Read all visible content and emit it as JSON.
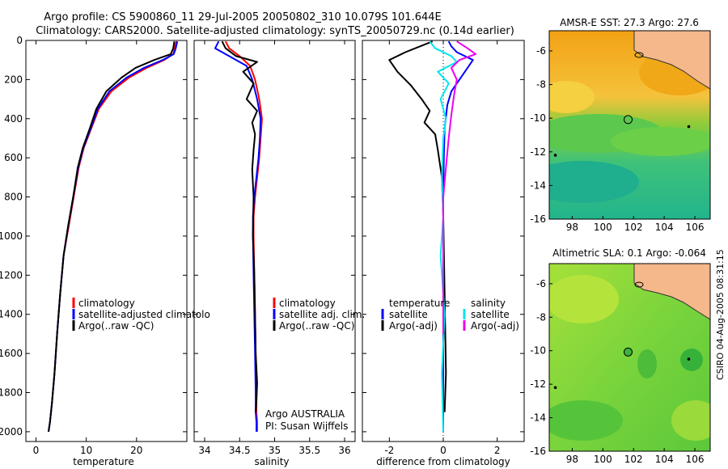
{
  "figure": {
    "title_line1": "Argo profile: CS 5900860_11 29-Jul-2005 20050802_310 10.079S 101.644E",
    "title_line2": "Climatology: CARS2000. Satellite-adjusted climatology: synTS_20050729.nc (0.14d earlier)",
    "credit": "CSIRO 04-Aug-2005 08:31:15"
  },
  "colors": {
    "climatology": "#ff0000",
    "satellite": "#0000ff",
    "argo": "#000000",
    "salinity_satellite": "#00e5ee",
    "salinity_argo": "#ee00ee",
    "land": "#f5b88a"
  },
  "chart_data": [
    {
      "type": "line",
      "id": "temperature",
      "xlabel": "temperature",
      "xlim": [
        -2,
        30
      ],
      "ylim": [
        2050,
        0
      ],
      "xticks": [
        0,
        10,
        20
      ],
      "xtick_labels": [
        "0",
        "10",
        "20"
      ],
      "yticks": [
        0,
        200,
        400,
        600,
        800,
        1000,
        1200,
        1400,
        1600,
        1800,
        2000
      ],
      "ytick_labels": [
        "0",
        "200",
        "400",
        "600",
        "800",
        "1000",
        "1200",
        "1400",
        "1600",
        "1800",
        "2000"
      ],
      "legend": [
        "climatology",
        "satellite-adjusted climatolo",
        "Argo(..raw -QC)"
      ],
      "legend_colors": [
        "#ff0000",
        "#0000ff",
        "#000000"
      ],
      "series": [
        {
          "name": "climatology",
          "color": "#ff0000",
          "x": [
            27.9,
            27.6,
            27.3,
            25.5,
            22.0,
            18.5,
            15.0,
            12.5,
            11.0,
            9.5,
            8.5,
            7.5,
            6.5,
            5.5,
            4.8,
            4.2,
            3.7,
            3.2,
            2.8,
            2.5
          ],
          "y": [
            5,
            40,
            70,
            100,
            140,
            190,
            260,
            350,
            450,
            550,
            650,
            800,
            950,
            1100,
            1300,
            1500,
            1700,
            1850,
            1950,
            2000
          ]
        },
        {
          "name": "satellite-adjusted climatology",
          "color": "#0000ff",
          "x": [
            28.1,
            27.8,
            27.4,
            25.2,
            21.5,
            18.0,
            14.6,
            12.3,
            10.9,
            9.4,
            8.4,
            7.4,
            6.4,
            5.5,
            4.8,
            4.2,
            3.7,
            3.2,
            2.8,
            2.5
          ],
          "y": [
            5,
            40,
            70,
            100,
            140,
            190,
            260,
            350,
            450,
            550,
            650,
            800,
            950,
            1100,
            1300,
            1500,
            1700,
            1850,
            1950,
            2000
          ]
        },
        {
          "name": "Argo(..raw -QC)",
          "color": "#000000",
          "x": [
            27.5,
            27.3,
            26.8,
            23.5,
            19.8,
            17.0,
            14.0,
            12.0,
            10.7,
            9.3,
            8.3,
            7.4,
            6.4,
            5.5,
            4.8,
            4.2,
            3.7,
            3.2,
            2.8,
            2.5
          ],
          "y": [
            5,
            40,
            70,
            100,
            140,
            190,
            260,
            350,
            450,
            550,
            650,
            800,
            950,
            1100,
            1300,
            1500,
            1700,
            1850,
            1950,
            2000
          ]
        }
      ]
    },
    {
      "type": "line",
      "id": "salinity",
      "xlabel": "salinity",
      "xlim": [
        33.85,
        36.15
      ],
      "ylim": [
        2050,
        0
      ],
      "xticks": [
        34,
        34.5,
        35,
        35.5,
        36
      ],
      "xtick_labels": [
        "34",
        "34.5",
        "35",
        "35.5",
        "36"
      ],
      "legend": [
        "climatology",
        "satellite adj. clim.",
        "Argo(..raw -QC)"
      ],
      "legend_colors": [
        "#ff0000",
        "#0000ff",
        "#000000"
      ],
      "annotation_line1": "Argo AUSTRALIA",
      "annotation_line2": "PI: Susan Wijffels",
      "series": [
        {
          "name": "climatology",
          "color": "#ff0000",
          "x": [
            34.3,
            34.35,
            34.5,
            34.65,
            34.72,
            34.78,
            34.82,
            34.8,
            34.78,
            34.75,
            34.72,
            34.7,
            34.7,
            34.71,
            34.72,
            34.73,
            34.74,
            34.74,
            34.75,
            34.75
          ],
          "y": [
            5,
            40,
            80,
            130,
            200,
            300,
            400,
            500,
            600,
            700,
            800,
            900,
            1000,
            1200,
            1400,
            1600,
            1800,
            1900,
            1950,
            2000
          ]
        },
        {
          "name": "satellite adj. clim.",
          "color": "#0000ff",
          "x": [
            34.2,
            34.15,
            34.35,
            34.6,
            34.68,
            34.75,
            34.8,
            34.79,
            34.77,
            34.74,
            34.71,
            34.69,
            34.69,
            34.7,
            34.71,
            34.72,
            34.73,
            34.73,
            34.74,
            34.74
          ],
          "y": [
            5,
            40,
            80,
            130,
            200,
            300,
            400,
            500,
            600,
            700,
            800,
            900,
            1000,
            1200,
            1400,
            1600,
            1800,
            1900,
            1950,
            2000
          ]
        },
        {
          "name": "Argo(..raw -QC)",
          "color": "#000000",
          "x": [
            34.25,
            34.3,
            34.45,
            34.75,
            34.55,
            34.7,
            34.6,
            34.75,
            34.68,
            34.72,
            34.7,
            34.68,
            34.7,
            34.69,
            34.71,
            34.72,
            34.73,
            34.75,
            34.74,
            34.73
          ],
          "y": [
            5,
            40,
            80,
            110,
            160,
            220,
            300,
            360,
            420,
            480,
            560,
            660,
            800,
            1000,
            1200,
            1400,
            1600,
            1750,
            1850,
            1900
          ]
        }
      ]
    },
    {
      "type": "line",
      "id": "difference",
      "xlabel": "difference from climatology",
      "xlim": [
        -3,
        3
      ],
      "ylim": [
        2050,
        0
      ],
      "xticks": [
        -2,
        0,
        2
      ],
      "xtick_labels": [
        "-2",
        "0",
        "2"
      ],
      "legend_temperature_title": "temperature",
      "legend_temperature": [
        "satellite",
        "Argo(-adj)"
      ],
      "legend_temperature_colors": [
        "#0000ff",
        "#000000"
      ],
      "legend_salinity_title": "salinity",
      "legend_salinity": [
        "satellite",
        "Argo(-adj)"
      ],
      "legend_salinity_colors": [
        "#00e5ee",
        "#ee00ee"
      ],
      "series": [
        {
          "name": "temperature satellite",
          "color": "#0000ff",
          "x": [
            0.2,
            0.3,
            0.5,
            0.8,
            1.1,
            0.9,
            0.6,
            0.3,
            0.15,
            0.05,
            0.02,
            0.0,
            0.0,
            0.0,
            0.0
          ],
          "y": [
            5,
            30,
            60,
            80,
            100,
            140,
            200,
            260,
            330,
            450,
            600,
            800,
            1200,
            1600,
            2000
          ]
        },
        {
          "name": "temperature Argo(-adj)",
          "color": "#000000",
          "x": [
            -0.4,
            -1.4,
            -2.0,
            -1.7,
            -1.2,
            -0.8,
            -0.5,
            -0.7,
            -0.3,
            -0.2,
            -0.05,
            0.0,
            0.05,
            0.1,
            0.05
          ],
          "y": [
            5,
            60,
            100,
            160,
            230,
            300,
            360,
            420,
            480,
            560,
            700,
            900,
            1300,
            1700,
            1900
          ]
        },
        {
          "name": "salinity satellite",
          "color": "#00e5ee",
          "x": [
            -0.5,
            -0.3,
            0.3,
            0.5,
            -0.2,
            0.2,
            -0.1,
            0.1,
            0.0,
            -0.05,
            0.0,
            -0.1,
            0.05,
            -0.05,
            0.0
          ],
          "y": [
            5,
            40,
            80,
            110,
            160,
            220,
            300,
            400,
            500,
            700,
            900,
            1100,
            1400,
            1700,
            2000
          ]
        },
        {
          "name": "salinity Argo(-adj)",
          "color": "#ee00ee",
          "x": [
            0.5,
            0.9,
            1.2,
            0.6,
            0.3,
            0.5,
            0.4,
            0.3,
            0.2,
            0.1,
            0.0,
            0.0,
            0.0,
            0.0
          ],
          "y": [
            5,
            40,
            70,
            100,
            140,
            200,
            280,
            380,
            500,
            650,
            800,
            1000,
            1300,
            1500
          ]
        }
      ]
    },
    {
      "type": "heatmap",
      "id": "sst-map",
      "title": "AMSR-E SST: 27.3 Argo: 27.6",
      "xlim": [
        96.5,
        107
      ],
      "ylim": [
        -16,
        -4.8
      ],
      "xticks": [
        98,
        100,
        102,
        104,
        106
      ],
      "xtick_labels": [
        "98",
        "100",
        "102",
        "104",
        "106"
      ],
      "yticks": [
        -6,
        -8,
        -10,
        -12,
        -14,
        -16
      ],
      "ytick_labels": [
        "-6",
        "-8",
        "-10",
        "-12",
        "-14",
        "-16"
      ],
      "float_location": [
        101.644,
        -10.079
      ],
      "markers": [
        [
          105.6,
          -10.5
        ],
        [
          96.9,
          -12.2
        ]
      ]
    },
    {
      "type": "heatmap",
      "id": "sla-map",
      "title": "Altimetric SLA: 0.1 Argo: -0.064",
      "xlim": [
        96.5,
        107
      ],
      "ylim": [
        -16,
        -4.8
      ],
      "xticks": [
        98,
        100,
        102,
        104,
        106
      ],
      "xtick_labels": [
        "98",
        "100",
        "102",
        "104",
        "106"
      ],
      "yticks": [
        -6,
        -8,
        -10,
        -12,
        -14,
        -16
      ],
      "ytick_labels": [
        "-6",
        "-8",
        "-10",
        "-12",
        "-14",
        "-16"
      ],
      "float_location": [
        101.644,
        -10.079
      ],
      "markers": [
        [
          105.6,
          -10.5
        ],
        [
          96.9,
          -12.2
        ]
      ]
    }
  ]
}
